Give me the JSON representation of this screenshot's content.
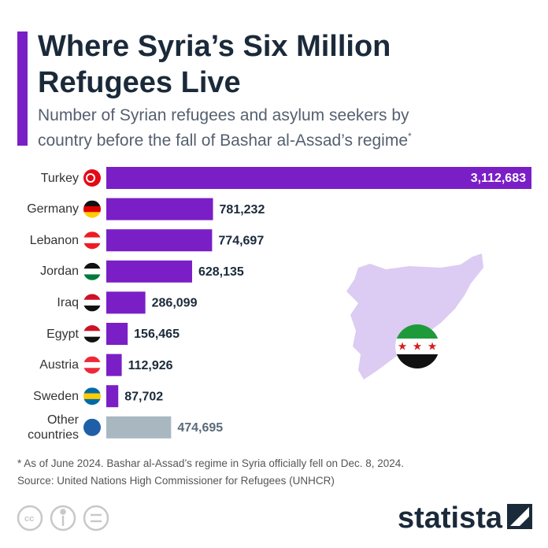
{
  "chart_data": {
    "type": "bar",
    "orientation": "horizontal",
    "title": "Where Syria’s Six Million Refugees Live",
    "subtitle": "Number of Syrian refugees and asylum seekers by country before the fall of Bashar al-Assad’s regime",
    "subtitle_marker": "*",
    "categories": [
      "Turkey",
      "Germany",
      "Lebanon",
      "Jordan",
      "Iraq",
      "Egypt",
      "Austria",
      "Sweden",
      "Other countries"
    ],
    "values": [
      3112683,
      781232,
      774697,
      628135,
      286099,
      156465,
      112926,
      87702,
      474695
    ],
    "value_labels": [
      "3,112,683",
      "781,232",
      "774,697",
      "628,135",
      "286,099",
      "156,465",
      "112,926",
      "87,702",
      "474,695"
    ],
    "colors": [
      "#7a1fc6",
      "#7a1fc6",
      "#7a1fc6",
      "#7a1fc6",
      "#7a1fc6",
      "#7a1fc6",
      "#7a1fc6",
      "#7a1fc6",
      "#a9b8c0"
    ]
  },
  "footnote": "* As of June 2024. Bashar al-Assad’s regime in Syria officially fell on Dec. 8, 2024.",
  "source": "Source: United Nations High Commissioner for Refugees (UNHCR)",
  "brand": "statista"
}
